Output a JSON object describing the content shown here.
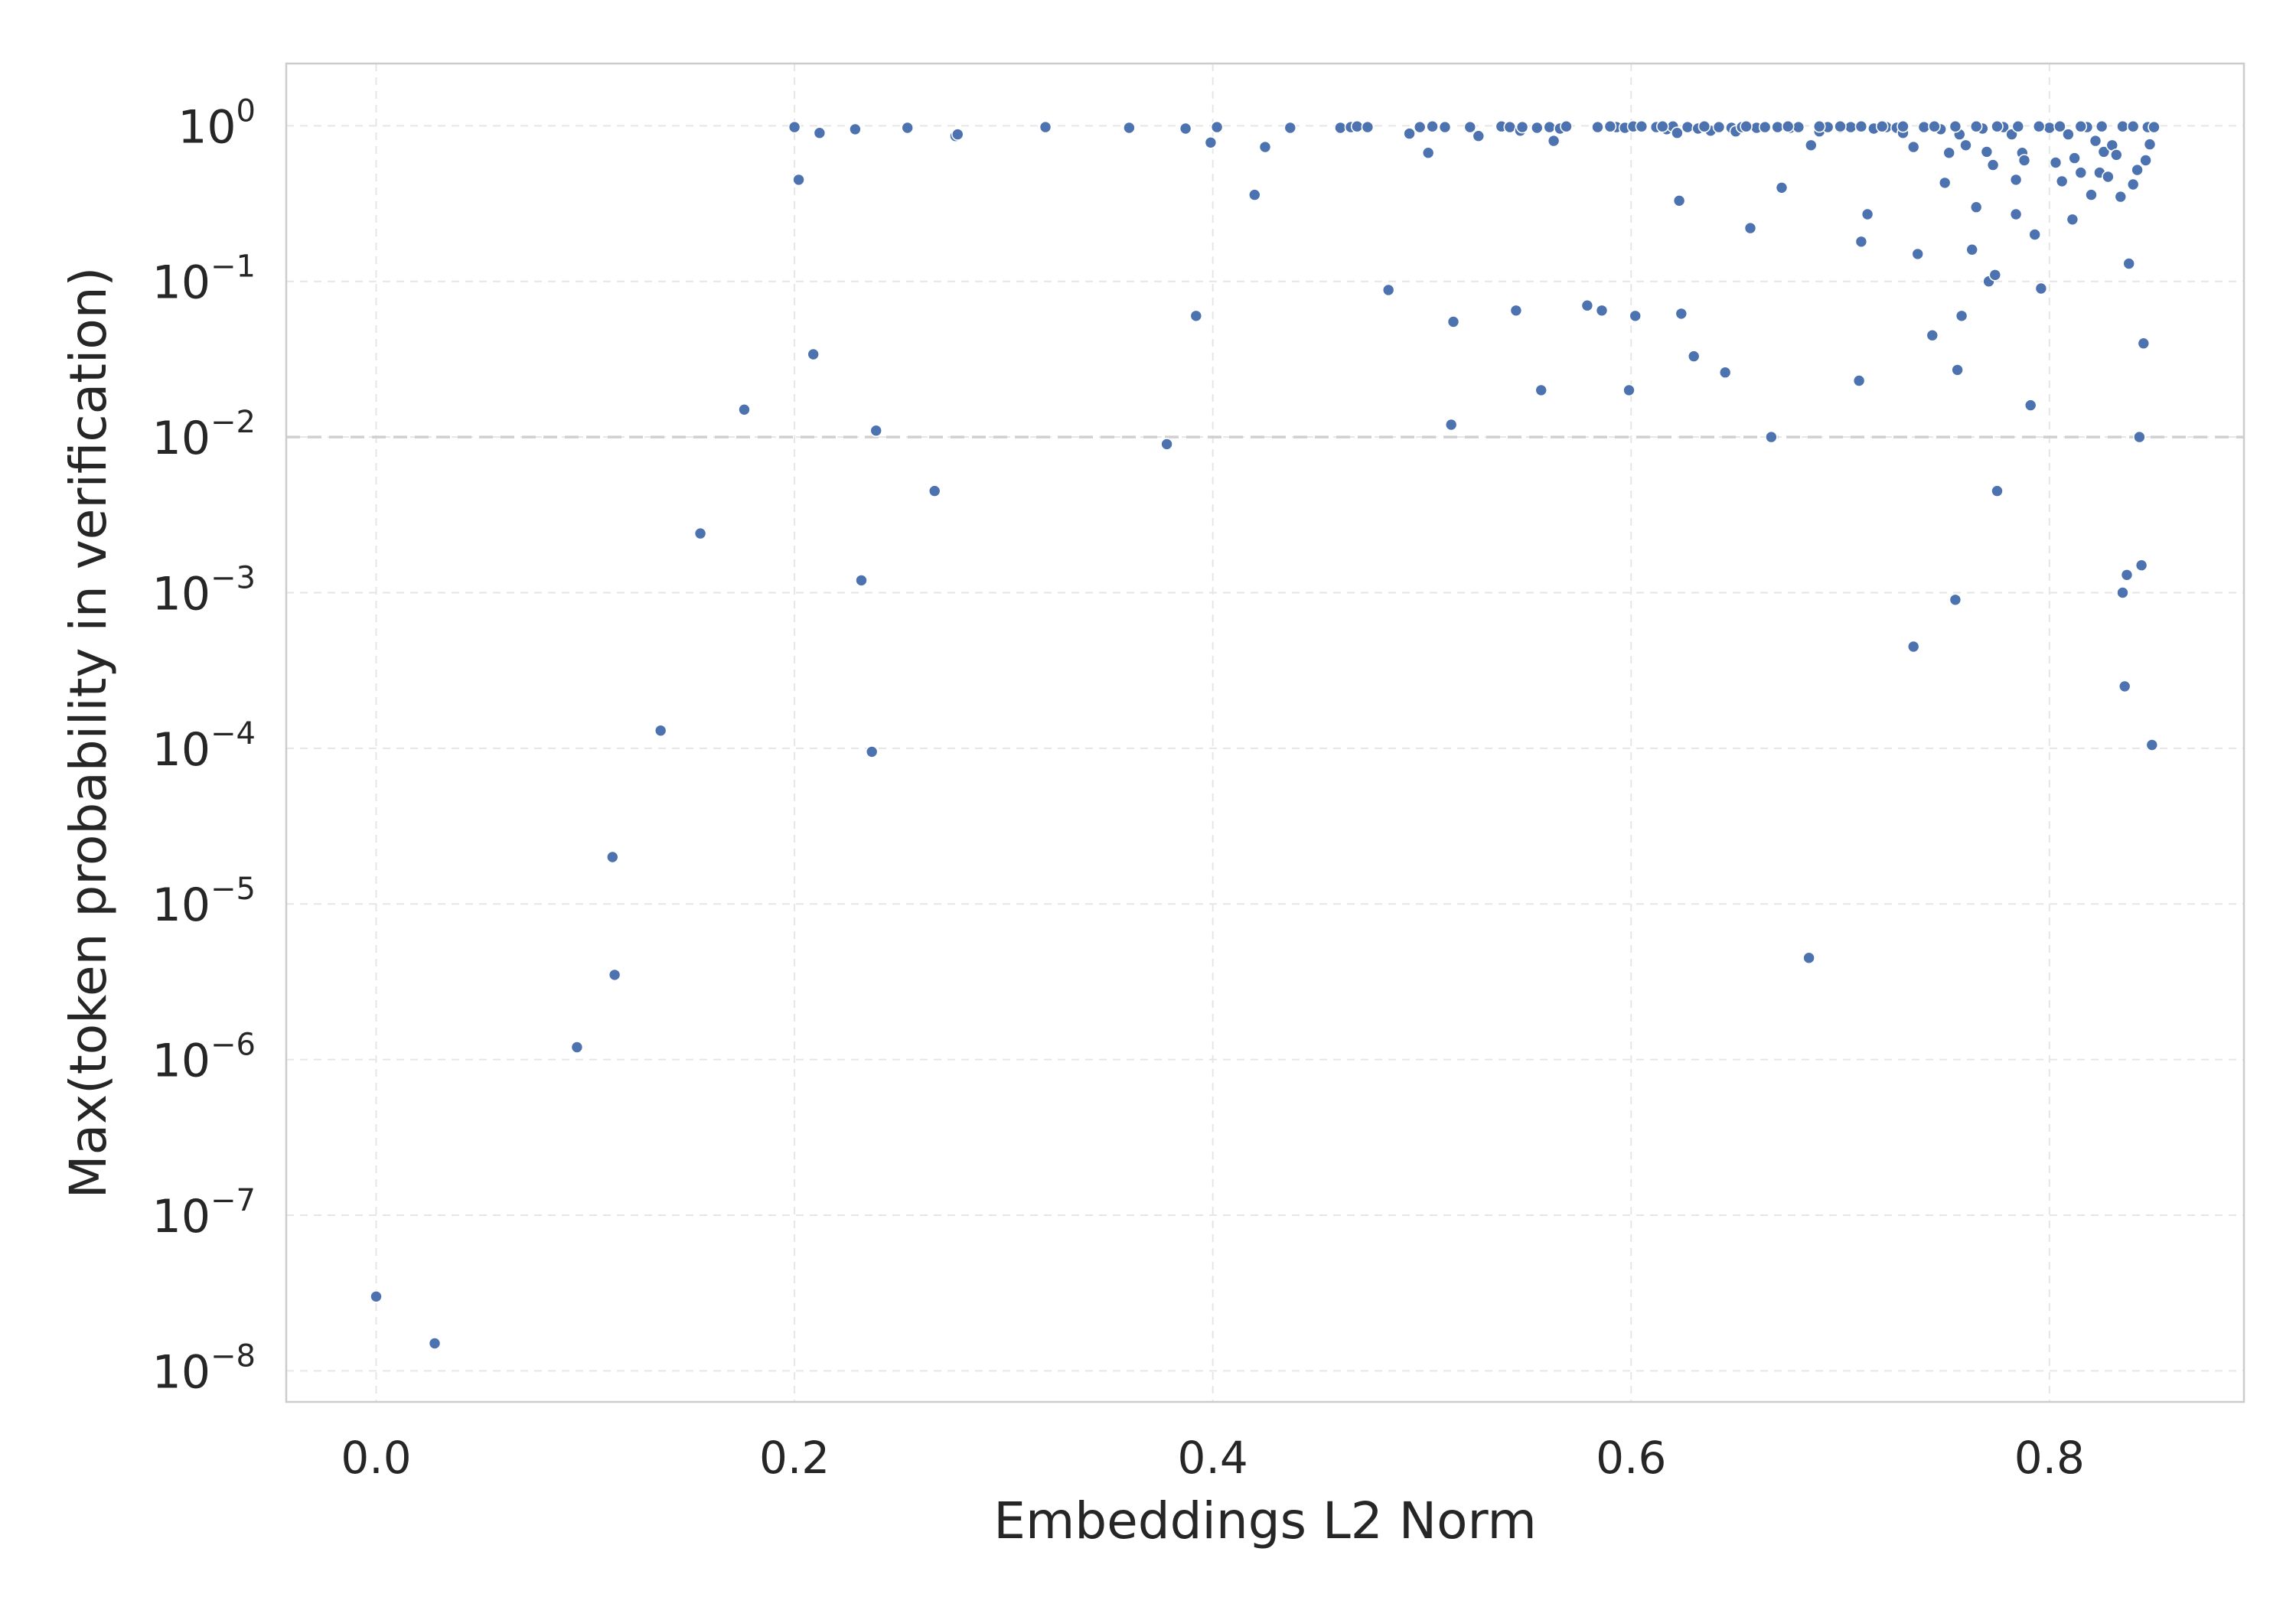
{
  "chart_data": {
    "type": "scatter",
    "title": "",
    "xlabel": "Embeddings L2 Norm",
    "ylabel": "Max(token probability in verification)",
    "xlim": [
      -0.043,
      0.893
    ],
    "ylim_log10": [
      -8.2,
      0.4
    ],
    "y_scale": "log",
    "grid": true,
    "legend": "none",
    "point_color": "#4c72b0",
    "point_edge_color": "#ffffff",
    "grid_color": "#e6e6e6",
    "frame_color": "#cccccc",
    "reference_line": {
      "y": 0.01,
      "style": "dashed",
      "color": "#d0d0d0"
    },
    "x_ticks": [
      {
        "value": 0.0,
        "label": "0.0"
      },
      {
        "value": 0.2,
        "label": "0.2"
      },
      {
        "value": 0.4,
        "label": "0.4"
      },
      {
        "value": 0.6,
        "label": "0.6"
      },
      {
        "value": 0.8,
        "label": "0.8"
      }
    ],
    "y_ticks": [
      {
        "exp": 0,
        "base": "10",
        "sup": "0"
      },
      {
        "exp": -1,
        "base": "10",
        "sup": "−1"
      },
      {
        "exp": -2,
        "base": "10",
        "sup": "−2"
      },
      {
        "exp": -3,
        "base": "10",
        "sup": "−3"
      },
      {
        "exp": -4,
        "base": "10",
        "sup": "−4"
      },
      {
        "exp": -5,
        "base": "10",
        "sup": "−5"
      },
      {
        "exp": -6,
        "base": "10",
        "sup": "−6"
      },
      {
        "exp": -7,
        "base": "10",
        "sup": "−7"
      },
      {
        "exp": -8,
        "base": "10",
        "sup": "−8"
      }
    ],
    "points": [
      [
        0.0,
        3e-08
      ],
      [
        0.028,
        1.5e-08
      ],
      [
        0.096,
        1.2e-06
      ],
      [
        0.113,
        2e-05
      ],
      [
        0.114,
        3.5e-06
      ],
      [
        0.136,
        0.00013
      ],
      [
        0.155,
        0.0024
      ],
      [
        0.176,
        0.015
      ],
      [
        0.2,
        0.98
      ],
      [
        0.202,
        0.45
      ],
      [
        0.209,
        0.034
      ],
      [
        0.212,
        0.9
      ],
      [
        0.229,
        0.95
      ],
      [
        0.232,
        0.0012
      ],
      [
        0.237,
        9.5e-05
      ],
      [
        0.239,
        0.011
      ],
      [
        0.254,
        0.97
      ],
      [
        0.267,
        0.0045
      ],
      [
        0.277,
        0.86
      ],
      [
        0.278,
        0.88
      ],
      [
        0.32,
        0.98
      ],
      [
        0.36,
        0.97
      ],
      [
        0.378,
        0.009
      ],
      [
        0.387,
        0.96
      ],
      [
        0.392,
        0.06
      ],
      [
        0.399,
        0.78
      ],
      [
        0.402,
        0.98
      ],
      [
        0.42,
        0.36
      ],
      [
        0.425,
        0.73
      ],
      [
        0.437,
        0.97
      ],
      [
        0.461,
        0.97
      ],
      [
        0.466,
        0.98
      ],
      [
        0.469,
        0.99
      ],
      [
        0.474,
        0.98
      ],
      [
        0.484,
        0.088
      ],
      [
        0.494,
        0.89
      ],
      [
        0.499,
        0.98
      ],
      [
        0.503,
        0.67
      ],
      [
        0.505,
        0.99
      ],
      [
        0.511,
        0.98
      ],
      [
        0.514,
        0.012
      ],
      [
        0.515,
        0.055
      ],
      [
        0.523,
        0.98
      ],
      [
        0.527,
        0.86
      ],
      [
        0.538,
        0.99
      ],
      [
        0.542,
        0.98
      ],
      [
        0.545,
        0.065
      ],
      [
        0.547,
        0.93
      ],
      [
        0.548,
        0.98
      ],
      [
        0.555,
        0.97
      ],
      [
        0.557,
        0.02
      ],
      [
        0.561,
        0.98
      ],
      [
        0.563,
        0.8
      ],
      [
        0.566,
        0.96
      ],
      [
        0.569,
        0.99
      ],
      [
        0.579,
        0.07
      ],
      [
        0.584,
        0.98
      ],
      [
        0.586,
        0.065
      ],
      [
        0.593,
        0.98
      ],
      [
        0.597,
        0.97
      ],
      [
        0.599,
        0.02
      ],
      [
        0.601,
        0.99
      ],
      [
        0.602,
        0.06
      ],
      [
        0.612,
        0.98
      ],
      [
        0.617,
        0.95
      ],
      [
        0.62,
        0.99
      ],
      [
        0.622,
        0.9
      ],
      [
        0.623,
        0.33
      ],
      [
        0.624,
        0.062
      ],
      [
        0.627,
        0.98
      ],
      [
        0.63,
        0.033
      ],
      [
        0.632,
        0.96
      ],
      [
        0.638,
        0.93
      ],
      [
        0.642,
        0.98
      ],
      [
        0.645,
        0.026
      ],
      [
        0.648,
        0.97
      ],
      [
        0.65,
        0.92
      ],
      [
        0.653,
        0.98
      ],
      [
        0.657,
        0.22
      ],
      [
        0.66,
        0.97
      ],
      [
        0.664,
        0.98
      ],
      [
        0.667,
        0.01
      ],
      [
        0.67,
        0.98
      ],
      [
        0.672,
        0.4
      ],
      [
        0.676,
        0.97
      ],
      [
        0.68,
        0.98
      ],
      [
        0.685,
        4.5e-06
      ],
      [
        0.686,
        0.75
      ],
      [
        0.69,
        0.92
      ],
      [
        0.694,
        0.98
      ],
      [
        0.7,
        0.97
      ],
      [
        0.705,
        0.98
      ],
      [
        0.709,
        0.023
      ],
      [
        0.71,
        0.18
      ],
      [
        0.713,
        0.27
      ],
      [
        0.716,
        0.96
      ],
      [
        0.722,
        0.98
      ],
      [
        0.727,
        0.97
      ],
      [
        0.73,
        0.9
      ],
      [
        0.735,
        0.00045
      ],
      [
        0.735,
        0.73
      ],
      [
        0.737,
        0.15
      ],
      [
        0.74,
        0.98
      ],
      [
        0.744,
        0.045
      ],
      [
        0.748,
        0.95
      ],
      [
        0.75,
        0.43
      ],
      [
        0.752,
        0.67
      ],
      [
        0.755,
        0.0009
      ],
      [
        0.756,
        0.027
      ],
      [
        0.757,
        0.88
      ],
      [
        0.758,
        0.06
      ],
      [
        0.76,
        0.75
      ],
      [
        0.763,
        0.16
      ],
      [
        0.765,
        0.3
      ],
      [
        0.768,
        0.96
      ],
      [
        0.77,
        0.68
      ],
      [
        0.771,
        0.1
      ],
      [
        0.773,
        0.56
      ],
      [
        0.774,
        0.11
      ],
      [
        0.775,
        0.0045
      ],
      [
        0.778,
        0.98
      ],
      [
        0.782,
        0.88
      ],
      [
        0.784,
        0.45
      ],
      [
        0.784,
        0.27
      ],
      [
        0.787,
        0.67
      ],
      [
        0.788,
        0.6
      ],
      [
        0.791,
        0.016
      ],
      [
        0.793,
        0.2
      ],
      [
        0.796,
        0.09
      ],
      [
        0.8,
        0.97
      ],
      [
        0.803,
        0.58
      ],
      [
        0.806,
        0.44
      ],
      [
        0.809,
        0.88
      ],
      [
        0.811,
        0.25
      ],
      [
        0.812,
        0.62
      ],
      [
        0.815,
        0.5
      ],
      [
        0.818,
        0.98
      ],
      [
        0.82,
        0.36
      ],
      [
        0.822,
        0.8
      ],
      [
        0.824,
        0.5
      ],
      [
        0.826,
        0.68
      ],
      [
        0.828,
        0.47
      ],
      [
        0.83,
        0.75
      ],
      [
        0.832,
        0.65
      ],
      [
        0.834,
        0.35
      ],
      [
        0.835,
        0.001
      ],
      [
        0.836,
        0.00025
      ],
      [
        0.837,
        0.0013
      ],
      [
        0.838,
        0.13
      ],
      [
        0.84,
        0.42
      ],
      [
        0.842,
        0.52
      ],
      [
        0.843,
        0.01
      ],
      [
        0.844,
        0.0015
      ],
      [
        0.845,
        0.04
      ],
      [
        0.846,
        0.6
      ],
      [
        0.847,
        0.98
      ],
      [
        0.848,
        0.76
      ],
      [
        0.849,
        0.000105
      ],
      [
        0.85,
        0.98
      ],
      [
        0.7,
        0.99
      ],
      [
        0.71,
        0.99
      ],
      [
        0.72,
        0.99
      ],
      [
        0.73,
        0.99
      ],
      [
        0.745,
        0.99
      ],
      [
        0.755,
        0.99
      ],
      [
        0.765,
        0.99
      ],
      [
        0.775,
        0.99
      ],
      [
        0.785,
        0.99
      ],
      [
        0.795,
        0.99
      ],
      [
        0.805,
        0.99
      ],
      [
        0.815,
        0.99
      ],
      [
        0.825,
        0.99
      ],
      [
        0.835,
        0.99
      ],
      [
        0.84,
        0.99
      ],
      [
        0.59,
        0.99
      ],
      [
        0.605,
        0.99
      ],
      [
        0.615,
        0.99
      ],
      [
        0.635,
        0.99
      ],
      [
        0.655,
        0.99
      ],
      [
        0.675,
        0.99
      ],
      [
        0.69,
        0.99
      ]
    ]
  }
}
